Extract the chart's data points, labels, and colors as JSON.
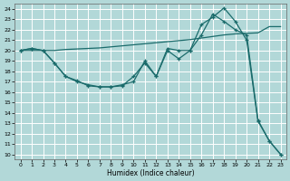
{
  "xlabel": "Humidex (Indice chaleur)",
  "xlim": [
    -0.5,
    23.5
  ],
  "ylim": [
    9.5,
    24.5
  ],
  "xticks": [
    0,
    1,
    2,
    3,
    4,
    5,
    6,
    7,
    8,
    9,
    10,
    11,
    12,
    13,
    14,
    15,
    16,
    17,
    18,
    19,
    20,
    21,
    22,
    23
  ],
  "yticks": [
    10,
    11,
    12,
    13,
    14,
    15,
    16,
    17,
    18,
    19,
    20,
    21,
    22,
    23,
    24
  ],
  "background_color": "#b2d8d8",
  "grid_color": "#ffffff",
  "line_color": "#1a6b6b",
  "line1_x": [
    0,
    1,
    2,
    3,
    4,
    5,
    6,
    7,
    8,
    9,
    10,
    11,
    12,
    13,
    14,
    15,
    16,
    17,
    18,
    19,
    20,
    21,
    22,
    23
  ],
  "line1_y": [
    20.0,
    20.0,
    20.0,
    20.0,
    20.1,
    20.15,
    20.2,
    20.25,
    20.35,
    20.45,
    20.55,
    20.65,
    20.75,
    20.85,
    20.95,
    21.05,
    21.2,
    21.35,
    21.5,
    21.6,
    21.65,
    21.7,
    22.3,
    22.3
  ],
  "line2_x": [
    0,
    1,
    2,
    3,
    4,
    5,
    6,
    7,
    8,
    9,
    10,
    11,
    12,
    13,
    14,
    15,
    16,
    17,
    18,
    19,
    20,
    21,
    22,
    23
  ],
  "line2_y": [
    20.0,
    20.2,
    20.0,
    18.8,
    17.5,
    17.0,
    16.7,
    16.5,
    16.5,
    16.6,
    17.5,
    18.8,
    17.5,
    20.0,
    19.2,
    20.0,
    22.5,
    23.2,
    24.1,
    22.8,
    21.0,
    13.2,
    11.3,
    10.0
  ],
  "line3_x": [
    0,
    1,
    2,
    3,
    4,
    5,
    6,
    7,
    8,
    9,
    10,
    11,
    12,
    13,
    14,
    15,
    16,
    17,
    18,
    19,
    20,
    21,
    22,
    23
  ],
  "line3_y": [
    20.0,
    20.2,
    20.0,
    18.8,
    17.5,
    17.1,
    16.6,
    16.5,
    16.5,
    16.7,
    17.0,
    19.0,
    17.5,
    20.2,
    20.0,
    20.0,
    21.5,
    23.5,
    22.8,
    22.0,
    21.5,
    13.3,
    11.3,
    10.0
  ]
}
